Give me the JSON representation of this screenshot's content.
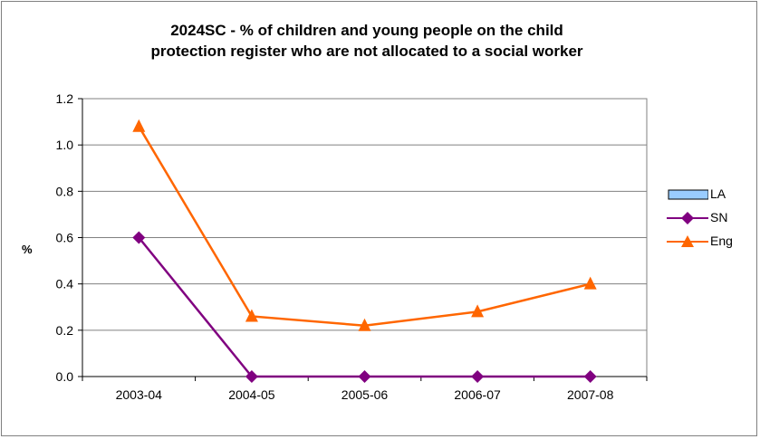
{
  "chart_data": {
    "type": "line",
    "title_lines": [
      "2024SC - % of children and young people on the child",
      "protection register who are not allocated to a social worker"
    ],
    "xlabel": "",
    "ylabel": "%",
    "categories": [
      "2003-04",
      "2004-05",
      "2005-06",
      "2006-07",
      "2007-08"
    ],
    "ylim": [
      0,
      1.2
    ],
    "yticks": [
      "0.0",
      "0.2",
      "0.4",
      "0.6",
      "0.8",
      "1.0",
      "1.2"
    ],
    "grid": true,
    "legend_position": "right",
    "series": [
      {
        "name": "LA",
        "kind": "bar",
        "values": [
          null,
          null,
          null,
          null,
          null
        ],
        "color": "#99CCFF",
        "marker": "square"
      },
      {
        "name": "SN",
        "kind": "line",
        "values": [
          0.6,
          0,
          0,
          0,
          0
        ],
        "color": "#800080",
        "marker": "diamond"
      },
      {
        "name": "Eng",
        "kind": "line",
        "values": [
          1.08,
          0.26,
          0.22,
          0.28,
          0.4
        ],
        "color": "#FF6600",
        "marker": "triangle"
      }
    ]
  }
}
